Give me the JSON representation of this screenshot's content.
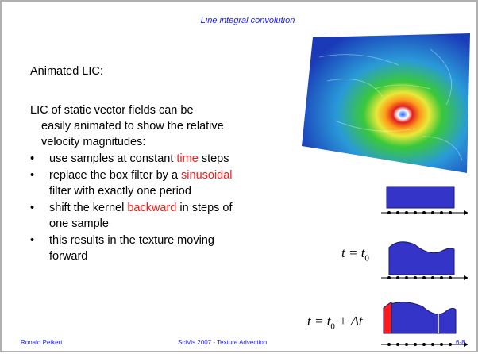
{
  "header": {
    "title": "Line integral convolution"
  },
  "heading": "Animated LIC:",
  "intro": "LIC of static vector fields can be easily animated to show the relative velocity magnitudes:",
  "bullets": [
    {
      "before": "use samples at constant ",
      "highlight": "time",
      "after": " steps"
    },
    {
      "before": "replace the box filter by a ",
      "highlight": "sinusoidal",
      "after": " filter with exactly one period"
    },
    {
      "before": "shift the kernel ",
      "highlight": "backward",
      "after": " in steps of one sample"
    },
    {
      "before": "this results in the texture moving forward"
    }
  ],
  "formulas": [
    {
      "main": "t = t",
      "sub": "0"
    },
    {
      "main": "t = t",
      "sub": "0",
      "rest": " + Δt"
    }
  ],
  "footer": {
    "left": "Ronald Peikert",
    "center": "SciVis 2007 - Texture Advection",
    "right": "6-8"
  }
}
